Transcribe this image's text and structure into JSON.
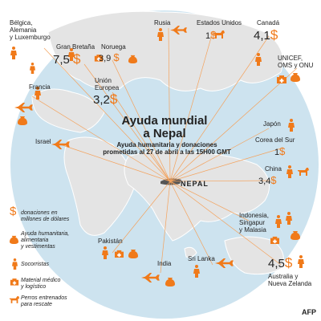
{
  "map": {
    "title_line1": "Ayuda mundial",
    "title_line2": "a Nepal",
    "subtitle_line1": "Ayuda humanitaria y donaciones",
    "subtitle_line2": "prometidas al  27 de abril a las 15H00 GMT",
    "nepal_label": "NEPAL",
    "colors": {
      "accent": "#f07a1a",
      "ocean": "#cde3ef",
      "land": "#e6e6e6",
      "line": "#f4a25c"
    }
  },
  "countries": {
    "belgica_line1": "Bélgica,",
    "belgica_line2": "Alemania",
    "belgica_line3": "y Luxemburgo",
    "gran_bretana": "Gran Bretaña",
    "gran_bretana_amount": "7,5",
    "noruega": "Noruega",
    "noruega_amount": "3,9",
    "rusia": "Rusia",
    "estados_unidos": "Estados Unidos",
    "estados_unidos_amount": "1",
    "canada": "Canadá",
    "canada_amount": "4,1",
    "unicef_line1": "UNICEF,",
    "unicef_line2": "OMS y ONU",
    "francia": "Francia",
    "union_line1": "Unión",
    "union_line2": "Europea",
    "union_amount": "3,2",
    "japon": "Japón",
    "corea": "Corea del Sur",
    "corea_amount": "1",
    "israel": "Israel",
    "china": "China",
    "china_amount": "3,4",
    "indonesia_line1": "Indonesia,",
    "indonesia_line2": "Singapur",
    "indonesia_line3": "y Malasia",
    "pakistan": "Pakistán",
    "india": "India",
    "sri_lanka": "Sri Lanka",
    "australia_line1": "Australia y",
    "australia_line2": "Nueva Zelanda",
    "australia_amount": "4,5"
  },
  "legend": {
    "donaciones_line1": "donaciones en",
    "donaciones_line2": "millones de dólares",
    "ayuda_line1": "Ayuda humanitaria,",
    "ayuda_line2": "alimentaria",
    "ayuda_line3": "y vestimentas",
    "socorristas": "Socorristas",
    "material_line1": "Material médico",
    "material_line2": "y logístico",
    "perros_line1": "Perros entrenados",
    "perros_line2": "para rescate",
    "dollar_symbol": "$"
  },
  "credit": "AFP",
  "icons": [
    "dollar-icon",
    "aid-box-icon",
    "rescuer-icon",
    "medical-bag-icon",
    "rescue-dog-icon",
    "airplane-icon"
  ]
}
